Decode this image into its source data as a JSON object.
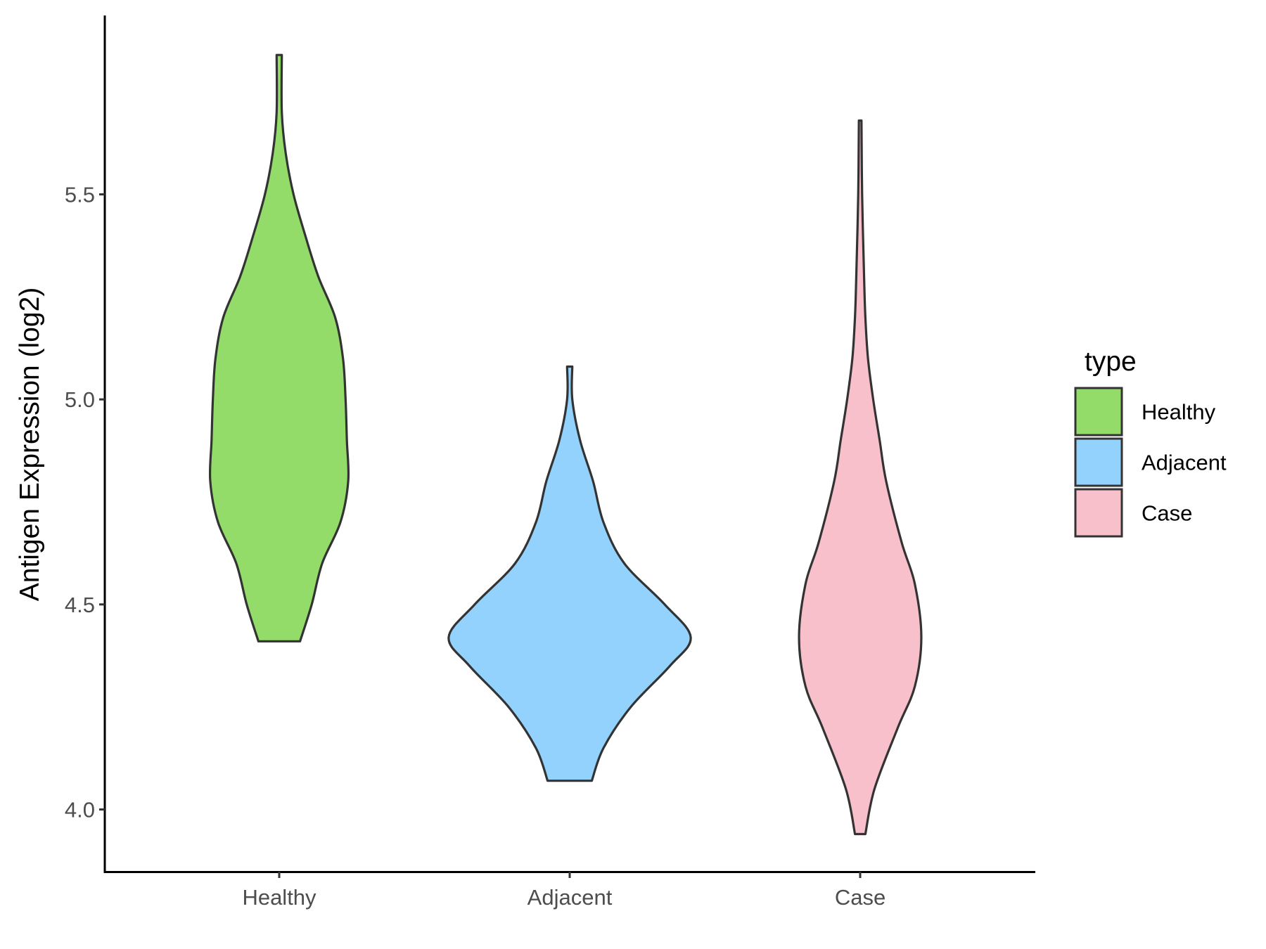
{
  "chart_data": {
    "type": "violin",
    "title": "",
    "xlabel": "",
    "ylabel": "Antigen Expression (log2)",
    "ylim": [
      3.86,
      5.97
    ],
    "yticks": [
      4.0,
      4.5,
      5.0,
      5.5
    ],
    "ytick_labels": [
      "4.0",
      "4.5",
      "5.0",
      "5.5"
    ],
    "categories": [
      "Healthy",
      "Adjacent",
      "Case"
    ],
    "grid": false,
    "legend": {
      "title": "type",
      "position": "right",
      "entries": [
        "Healthy",
        "Adjacent",
        "Case"
      ]
    },
    "series": [
      {
        "name": "Healthy",
        "color": "#93dc6a",
        "min": 4.41,
        "max": 5.84,
        "density_profile": [
          [
            4.41,
            0.16
          ],
          [
            4.5,
            0.25
          ],
          [
            4.6,
            0.33
          ],
          [
            4.7,
            0.47
          ],
          [
            4.8,
            0.53
          ],
          [
            4.9,
            0.52
          ],
          [
            5.0,
            0.51
          ],
          [
            5.1,
            0.49
          ],
          [
            5.2,
            0.43
          ],
          [
            5.3,
            0.3
          ],
          [
            5.4,
            0.2
          ],
          [
            5.5,
            0.11
          ],
          [
            5.6,
            0.05
          ],
          [
            5.7,
            0.02
          ],
          [
            5.84,
            0.02
          ]
        ]
      },
      {
        "name": "Adjacent",
        "color": "#93d2fd",
        "min": 4.07,
        "max": 5.08,
        "density_profile": [
          [
            4.07,
            0.17
          ],
          [
            4.15,
            0.26
          ],
          [
            4.25,
            0.47
          ],
          [
            4.35,
            0.77
          ],
          [
            4.42,
            0.93
          ],
          [
            4.5,
            0.73
          ],
          [
            4.6,
            0.42
          ],
          [
            4.7,
            0.26
          ],
          [
            4.8,
            0.18
          ],
          [
            4.9,
            0.08
          ],
          [
            5.0,
            0.02
          ],
          [
            5.08,
            0.02
          ]
        ]
      },
      {
        "name": "Case",
        "color": "#f7c0cb",
        "min": 3.94,
        "max": 5.68,
        "density_profile": [
          [
            3.94,
            0.04
          ],
          [
            4.05,
            0.11
          ],
          [
            4.2,
            0.29
          ],
          [
            4.3,
            0.42
          ],
          [
            4.42,
            0.47
          ],
          [
            4.55,
            0.42
          ],
          [
            4.65,
            0.32
          ],
          [
            4.8,
            0.2
          ],
          [
            4.9,
            0.15
          ],
          [
            5.0,
            0.1
          ],
          [
            5.1,
            0.06
          ],
          [
            5.2,
            0.04
          ],
          [
            5.3,
            0.03
          ],
          [
            5.5,
            0.015
          ],
          [
            5.68,
            0.01
          ]
        ]
      }
    ]
  }
}
